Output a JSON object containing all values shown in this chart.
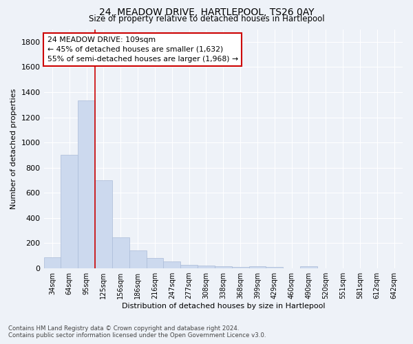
{
  "title": "24, MEADOW DRIVE, HARTLEPOOL, TS26 0AY",
  "subtitle": "Size of property relative to detached houses in Hartlepool",
  "xlabel": "Distribution of detached houses by size in Hartlepool",
  "ylabel": "Number of detached properties",
  "categories": [
    "34sqm",
    "64sqm",
    "95sqm",
    "125sqm",
    "156sqm",
    "186sqm",
    "216sqm",
    "247sqm",
    "277sqm",
    "308sqm",
    "338sqm",
    "368sqm",
    "399sqm",
    "429sqm",
    "460sqm",
    "490sqm",
    "520sqm",
    "551sqm",
    "581sqm",
    "612sqm",
    "642sqm"
  ],
  "values": [
    90,
    905,
    1335,
    700,
    245,
    145,
    85,
    55,
    28,
    22,
    15,
    12,
    15,
    13,
    0,
    18,
    0,
    0,
    0,
    0,
    0
  ],
  "bar_color": "#ccd9ee",
  "bar_edge_color": "#aabbd8",
  "red_line_x": 2.5,
  "annotation_line1": "24 MEADOW DRIVE: 109sqm",
  "annotation_line2": "← 45% of detached houses are smaller (1,632)",
  "annotation_line3": "55% of semi-detached houses are larger (1,968) →",
  "annotation_box_facecolor": "#ffffff",
  "annotation_box_edgecolor": "#cc0000",
  "ylim": [
    0,
    1900
  ],
  "yticks": [
    0,
    200,
    400,
    600,
    800,
    1000,
    1200,
    1400,
    1600,
    1800
  ],
  "background_color": "#eef2f8",
  "grid_color": "#ffffff",
  "footer_line1": "Contains HM Land Registry data © Crown copyright and database right 2024.",
  "footer_line2": "Contains public sector information licensed under the Open Government Licence v3.0."
}
